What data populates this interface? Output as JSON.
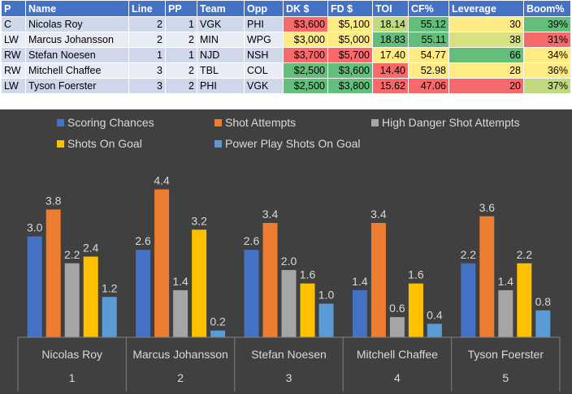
{
  "table": {
    "headers": [
      "P",
      "Name",
      "Line",
      "PP",
      "Team",
      "Opp",
      "DK $",
      "FD $",
      "TOI",
      "CF%",
      "Leverage",
      "Boom%"
    ],
    "rows": [
      {
        "p": "C",
        "name": "Nicolas Roy",
        "line": "2",
        "pp": "1",
        "team": "VGK",
        "opp": "PHI",
        "dk": "$3,600",
        "fd": "$5,100",
        "toi": "18.14",
        "cf": "55.12",
        "lev": "30",
        "boom": "39%",
        "colors": {
          "dk": "#f8696b",
          "fd": "#ffeb84",
          "toi": "#c1da81",
          "cf": "#63be7b",
          "lev": "#ffeb84",
          "boom": "#63be7b"
        }
      },
      {
        "p": "LW",
        "name": "Marcus Johansson",
        "line": "2",
        "pp": "2",
        "team": "MIN",
        "opp": "WPG",
        "dk": "$3,000",
        "fd": "$5,000",
        "toi": "18.83",
        "cf": "55.11",
        "lev": "38",
        "boom": "31%",
        "colors": {
          "dk": "#ffeb84",
          "fd": "#ffeb84",
          "toi": "#63be7b",
          "cf": "#63be7b",
          "lev": "#d9e082",
          "boom": "#f8696b"
        }
      },
      {
        "p": "RW",
        "name": "Stefan Noesen",
        "line": "1",
        "pp": "1",
        "team": "NJD",
        "opp": "NSH",
        "dk": "$3,700",
        "fd": "$5,700",
        "toi": "17.40",
        "cf": "54.77",
        "lev": "66",
        "boom": "34%",
        "colors": {
          "dk": "#f8696b",
          "fd": "#f8696b",
          "toi": "#ffeb84",
          "cf": "#ffeb84",
          "lev": "#63be7b",
          "boom": "#ffeb84"
        }
      },
      {
        "p": "RW",
        "name": "Mitchell Chaffee",
        "line": "3",
        "pp": "2",
        "team": "TBL",
        "opp": "COL",
        "dk": "$2,500",
        "fd": "$3,600",
        "toi": "14.40",
        "cf": "52.98",
        "lev": "28",
        "boom": "36%",
        "colors": {
          "dk": "#63be7b",
          "fd": "#63be7b",
          "toi": "#f8696b",
          "cf": "#ffeb84",
          "lev": "#ffeb84",
          "boom": "#ffeb84"
        }
      },
      {
        "p": "LW",
        "name": "Tyson Foerster",
        "line": "3",
        "pp": "2",
        "team": "PHI",
        "opp": "VGK",
        "dk": "$2,500",
        "fd": "$3,800",
        "toi": "15.62",
        "cf": "47.06",
        "lev": "20",
        "boom": "37%",
        "colors": {
          "dk": "#63be7b",
          "fd": "#63be7b",
          "toi": "#f8696b",
          "cf": "#f8696b",
          "lev": "#f8696b",
          "boom": "#c1da81"
        }
      }
    ]
  },
  "chart_data": {
    "type": "bar",
    "categories": [
      "Nicolas Roy",
      "Marcus Johansson",
      "Stefan Noesen",
      "Mitchell Chaffee",
      "Tyson Foerster"
    ],
    "category_index": [
      "1",
      "2",
      "3",
      "4",
      "5"
    ],
    "series": [
      {
        "name": "Scoring Chances",
        "color": "#4472c4",
        "values": [
          3.0,
          2.6,
          2.6,
          1.4,
          2.2
        ],
        "labels": [
          "3.0",
          "2.6",
          "2.6",
          "1.4",
          "2.2"
        ]
      },
      {
        "name": "Shot Attempts",
        "color": "#ed7d31",
        "values": [
          3.8,
          4.4,
          3.4,
          3.4,
          3.6
        ],
        "labels": [
          "3.8",
          "4.4",
          "3.4",
          "3.4",
          "3.6"
        ]
      },
      {
        "name": "High Danger Shot Attempts",
        "color": "#a5a5a5",
        "values": [
          2.2,
          1.4,
          2.0,
          0.6,
          1.4
        ],
        "labels": [
          "2.2",
          "1.4",
          "2.0",
          "0.6",
          "1.4"
        ]
      },
      {
        "name": "Shots On Goal",
        "color": "#ffc000",
        "values": [
          2.4,
          3.2,
          1.6,
          1.6,
          2.2
        ],
        "labels": [
          "2.4",
          "3.2",
          "1.6",
          "1.6",
          "2.2"
        ]
      },
      {
        "name": "Power Play Shots On Goal",
        "color": "#5b9bd5",
        "values": [
          1.2,
          0.2,
          1.0,
          0.4,
          0.8
        ],
        "labels": [
          "1.2",
          "0.2",
          "1.0",
          "0.4",
          "0.8"
        ]
      }
    ],
    "ylim": [
      0,
      4.8
    ],
    "background": "#404040",
    "legend": "top",
    "grid": false
  }
}
